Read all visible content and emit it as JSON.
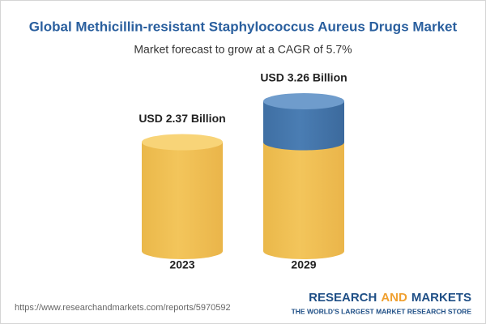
{
  "chart_data": {
    "type": "cylinder",
    "title": "Global Methicillin-resistant Staphylococcus Aureus Drugs Market",
    "subtitle": "Market forecast to grow at a CAGR of 5.7%",
    "categories": [
      "2023",
      "2029"
    ],
    "values": [
      2.37,
      3.26
    ],
    "value_labels": [
      "USD 2.37 Billion",
      "USD 3.26 Billion"
    ],
    "color": "#f3c55b",
    "growth_color": "#4a7db3"
  },
  "footer": {
    "url": "https://www.researchandmarkets.com/reports/5970592",
    "brand": [
      "RESEARCH",
      "AND",
      "MARKETS"
    ],
    "tagline": "THE WORLD'S LARGEST MARKET RESEARCH STORE"
  }
}
